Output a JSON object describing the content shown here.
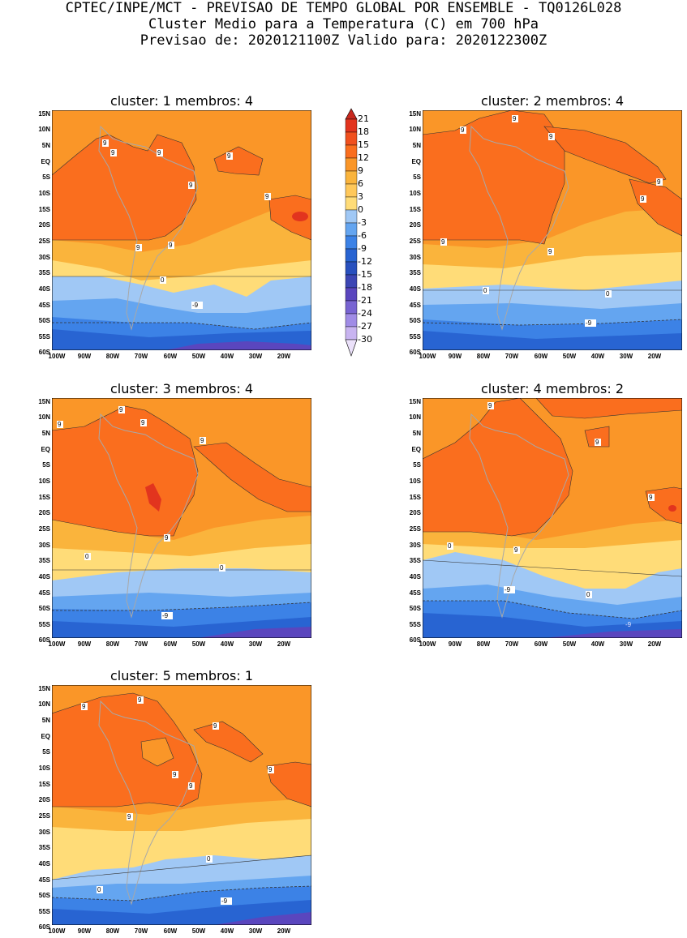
{
  "header": {
    "line1": "CPTEC/INPE/MCT - PREVISAO DE TEMPO GLOBAL POR ENSEMBLE - TQ0126L028",
    "line2": "Cluster Medio para a Temperatura (C) em 700 hPa",
    "line3": "Previsao de: 2020121100Z   Valido para: 2020122300Z"
  },
  "axes": {
    "lat_ticks": [
      "15N",
      "10N",
      "5N",
      "EQ",
      "5S",
      "10S",
      "15S",
      "20S",
      "25S",
      "30S",
      "35S",
      "40S",
      "45S",
      "50S",
      "55S",
      "60S"
    ],
    "lon_ticks": [
      "100W",
      "90W",
      "80W",
      "70W",
      "60W",
      "50W",
      "40W",
      "30W",
      "20W"
    ]
  },
  "colorbar": {
    "labels": [
      "21",
      "18",
      "15",
      "12",
      "9",
      "6",
      "3",
      "0",
      "-3",
      "-6",
      "-9",
      "-12",
      "-15",
      "-18",
      "-21",
      "-24",
      "-27",
      "-30"
    ],
    "colors": [
      "#c8281e",
      "#e2341e",
      "#f0501e",
      "#fa6e1e",
      "#fa9628",
      "#fab43c",
      "#ffdc78",
      "#a0c8f5",
      "#64a5f0",
      "#3c82e6",
      "#2864d2",
      "#2850be",
      "#3c46b4",
      "#5a46be",
      "#7864d2",
      "#a08ce6",
      "#c8b4f0",
      "#ebe1fa"
    ]
  },
  "panels": [
    {
      "title": "cluster: 1   membros: 4",
      "contour_labels": [
        "9",
        "9",
        "9",
        "9",
        "9",
        "9",
        "9",
        "9",
        "0",
        "-9"
      ]
    },
    {
      "title": "cluster: 2   membros: 4",
      "contour_labels": [
        "9",
        "9",
        "9",
        "9",
        "9",
        "9",
        "9",
        "0",
        "0",
        "-9"
      ]
    },
    {
      "title": "cluster: 3   membros: 4",
      "contour_labels": [
        "9",
        "9",
        "9",
        "9",
        "9",
        "0",
        "0",
        "-9"
      ]
    },
    {
      "title": "cluster: 4   membros: 2",
      "contour_labels": [
        "9",
        "9",
        "9",
        "9",
        "0",
        "0",
        "-9",
        "-9"
      ]
    },
    {
      "title": "cluster: 5   membros: 1",
      "contour_labels": [
        "9",
        "9",
        "9",
        "9",
        "9",
        "9",
        "9",
        "0",
        "0",
        "-9"
      ]
    }
  ],
  "colors": {
    "c9": "#fa6e1e",
    "c6": "#fa9628",
    "c3": "#fab43c",
    "c0": "#ffdc78",
    "cm3": "#a0c8f5",
    "cm6": "#64a5f0",
    "cm9": "#3c82e6",
    "cm12": "#2864d2",
    "cm15": "#3c46b4",
    "cm18": "#5a46be",
    "c12": "#e2341e",
    "border": "#a8a8a8"
  }
}
